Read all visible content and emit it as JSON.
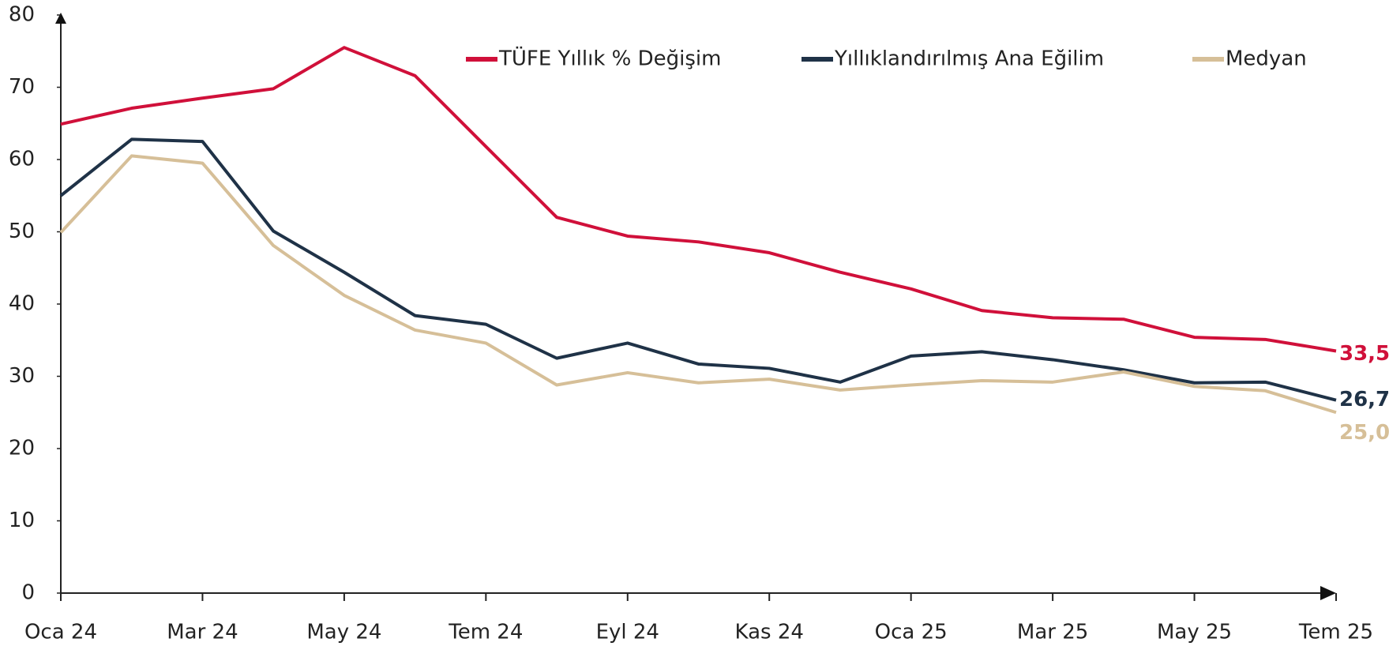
{
  "chart_data": {
    "type": "line",
    "categories": [
      "Oca 24",
      null,
      "Mar 24",
      null,
      "May 24",
      null,
      "Tem 24",
      null,
      "Eyl 24",
      null,
      "Kas 24",
      null,
      "Oca 25",
      null,
      "Mar 25",
      null,
      "May 25",
      null,
      "Tem 25"
    ],
    "series": [
      {
        "name": "TÜFE Yıllık % Değişim",
        "color": "#d0103a",
        "values": [
          64.9,
          67.1,
          68.5,
          69.8,
          75.5,
          71.6,
          61.8,
          52.0,
          49.4,
          48.6,
          47.1,
          44.4,
          42.1,
          39.1,
          38.1,
          37.9,
          35.4,
          35.1,
          33.5
        ],
        "value_labels": [
          null,
          null,
          null,
          null,
          null,
          null,
          null,
          null,
          null,
          null,
          null,
          null,
          null,
          null,
          null,
          null,
          null,
          null,
          "33,5"
        ]
      },
      {
        "name": "Yıllıklandırılmış Ana Eğilim",
        "color": "#1f3247",
        "values": [
          55.0,
          62.8,
          62.5,
          50.1,
          44.4,
          38.4,
          37.2,
          32.5,
          34.6,
          31.7,
          31.1,
          29.2,
          32.8,
          33.4,
          32.3,
          30.9,
          29.1,
          29.2,
          26.7
        ],
        "value_labels": [
          null,
          null,
          null,
          null,
          null,
          null,
          null,
          null,
          null,
          null,
          null,
          null,
          null,
          null,
          null,
          null,
          null,
          null,
          "26,7"
        ]
      },
      {
        "name": "Medyan",
        "color": "#d6bf98",
        "values": [
          49.9,
          60.5,
          59.5,
          48.1,
          41.2,
          36.4,
          34.6,
          28.8,
          30.5,
          29.1,
          29.6,
          28.1,
          28.8,
          29.4,
          29.2,
          30.6,
          28.6,
          28.0,
          25.0
        ],
        "value_labels": [
          null,
          null,
          null,
          null,
          null,
          null,
          null,
          null,
          null,
          null,
          null,
          null,
          null,
          null,
          null,
          null,
          null,
          null,
          "25,0"
        ]
      }
    ],
    "ylim": [
      0,
      80
    ],
    "yticks": [
      0,
      10,
      20,
      30,
      40,
      50,
      60,
      70,
      80
    ],
    "grid": false
  }
}
